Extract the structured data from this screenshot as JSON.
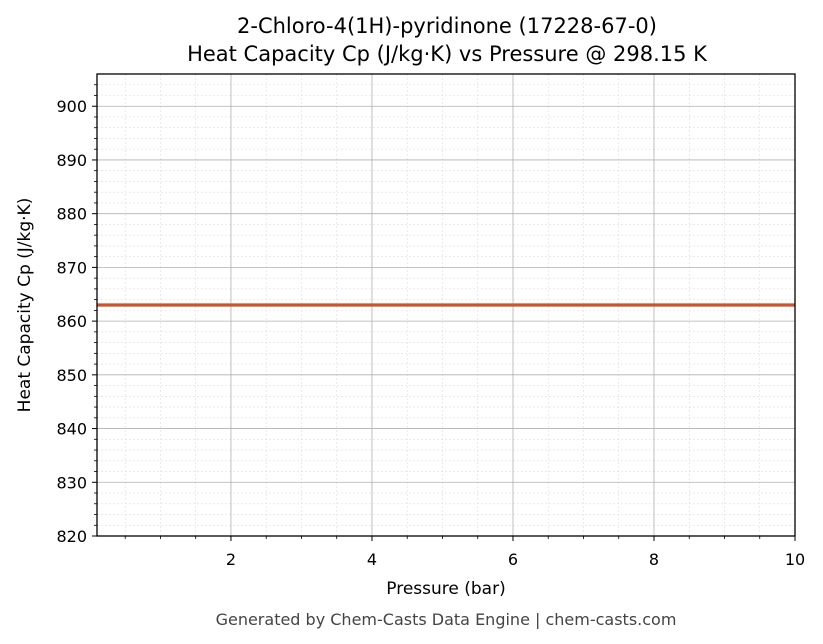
{
  "chart_data": {
    "type": "line",
    "title": "2-Chloro-4(1H)-pyridinone (17228-67-0)",
    "subtitle": "Heat Capacity Cp (J/kg·K) vs Pressure @ 298.15 K",
    "xlabel": "Pressure (bar)",
    "ylabel": "Heat Capacity Cp (J/kg·K)",
    "xlim": [
      0.1,
      10
    ],
    "ylim": [
      820,
      906
    ],
    "xticks": [
      2,
      4,
      6,
      8,
      10
    ],
    "yticks": [
      820,
      830,
      840,
      850,
      860,
      870,
      880,
      890,
      900
    ],
    "grid": true,
    "series": [
      {
        "color": "#c8552b",
        "x": [
          0.1,
          1,
          2,
          3,
          4,
          5,
          6,
          7,
          8,
          9,
          10
        ],
        "y": [
          863,
          863,
          863,
          863,
          863,
          863,
          863,
          863,
          863,
          863,
          863
        ]
      }
    ]
  },
  "footer": "Generated by Chem-Casts Data Engine | chem-casts.com"
}
